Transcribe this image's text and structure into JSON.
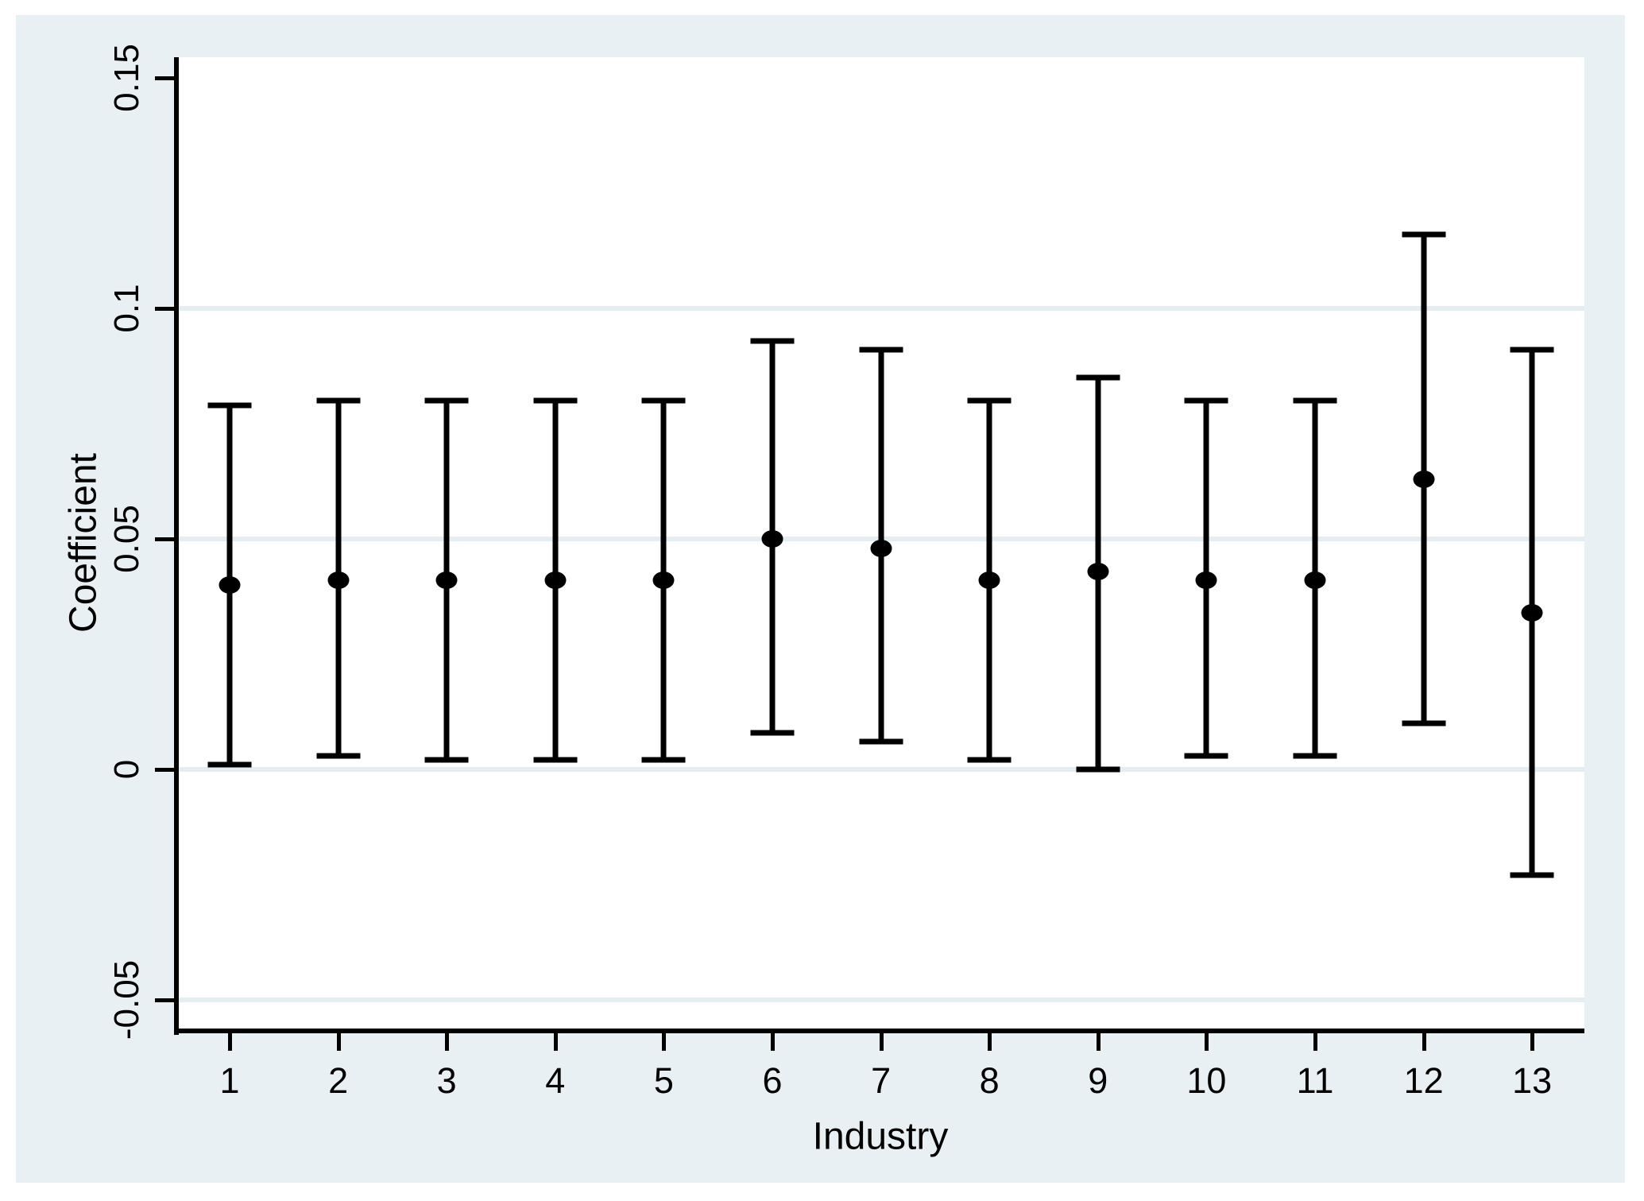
{
  "chart_data": {
    "type": "scatter",
    "subtype": "coefficient-errorbar",
    "title": "",
    "xlabel": "Industry",
    "ylabel": "Coefficient",
    "categories": [
      "1",
      "2",
      "3",
      "4",
      "5",
      "6",
      "7",
      "8",
      "9",
      "10",
      "11",
      "12",
      "13"
    ],
    "series": [
      {
        "name": "coefficient",
        "values": [
          0.04,
          0.041,
          0.041,
          0.041,
          0.041,
          0.05,
          0.048,
          0.041,
          0.043,
          0.041,
          0.041,
          0.063,
          0.034
        ],
        "ci_low": [
          0.001,
          0.003,
          0.002,
          0.002,
          0.002,
          0.008,
          0.006,
          0.002,
          0.0,
          0.003,
          0.003,
          0.01,
          -0.023
        ],
        "ci_high": [
          0.079,
          0.08,
          0.08,
          0.08,
          0.08,
          0.093,
          0.091,
          0.08,
          0.085,
          0.08,
          0.08,
          0.116,
          0.091
        ]
      }
    ],
    "y_ticks": [
      {
        "label": "0.15",
        "value": 0.15,
        "grid": false
      },
      {
        "label": "0.1",
        "value": 0.1,
        "grid": true
      },
      {
        "label": "0.05",
        "value": 0.05,
        "grid": true
      },
      {
        "label": "0",
        "value": 0.0,
        "grid": true
      },
      {
        "label": "-0.05",
        "value": -0.05,
        "grid": true
      }
    ],
    "ylim": [
      -0.0562,
      0.1545
    ],
    "grid": "horizontal",
    "legend": "none",
    "colors": {
      "marker": "#000000",
      "error_bar": "#000000",
      "figure_background": "#e9f0f3",
      "plot_background": "#ffffff",
      "gridline": "#e4edf1",
      "axis": "#000000"
    }
  }
}
